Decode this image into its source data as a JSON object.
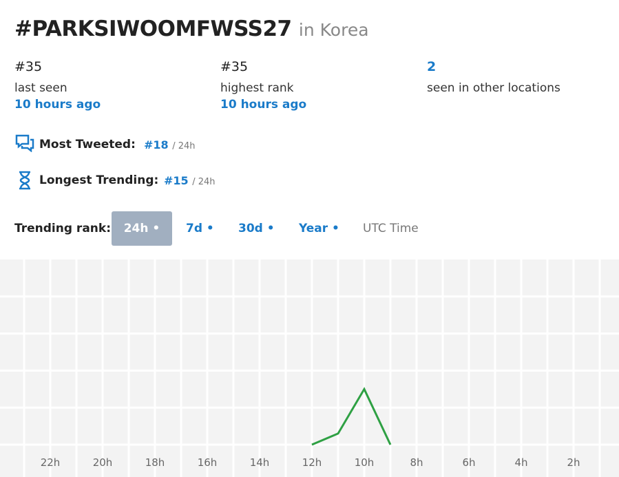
{
  "header": {
    "title": "#PARKSIWOOMFWSS27",
    "location": "in Korea"
  },
  "stats": [
    {
      "value": "#35",
      "label": "last seen",
      "detail": "10 hours ago"
    },
    {
      "value": "#35",
      "label": "highest rank",
      "detail": "10 hours ago"
    },
    {
      "value": "2",
      "label": "seen in other locations"
    }
  ],
  "records": [
    {
      "label": "Most Tweeted:",
      "rank": "#18",
      "period": "/ 24h"
    },
    {
      "label": "Longest Trending:",
      "rank": "#15",
      "period": "/ 24h"
    }
  ],
  "trending": {
    "label": "Trending rank:",
    "tabs": [
      "24h •",
      "7d •",
      "30d •",
      "Year •"
    ],
    "timezone": "UTC Time"
  },
  "chart_data": {
    "type": "line",
    "x": [
      12,
      11,
      10,
      9
    ],
    "values": [
      0,
      0.3,
      1.5,
      0
    ],
    "color": "#2ea043",
    "xlim": [
      24,
      0
    ],
    "ylim": [
      0,
      5
    ],
    "xticks": [
      {
        "value": 22,
        "label": "22h"
      },
      {
        "value": 20,
        "label": "20h"
      },
      {
        "value": 18,
        "label": "18h"
      },
      {
        "value": 16,
        "label": "16h"
      },
      {
        "value": 14,
        "label": "14h"
      },
      {
        "value": 12,
        "label": "12h"
      },
      {
        "value": 10,
        "label": "10h"
      },
      {
        "value": 8,
        "label": "8h"
      },
      {
        "value": 6,
        "label": "6h"
      },
      {
        "value": 4,
        "label": "4h"
      },
      {
        "value": 2,
        "label": "2h"
      }
    ]
  }
}
